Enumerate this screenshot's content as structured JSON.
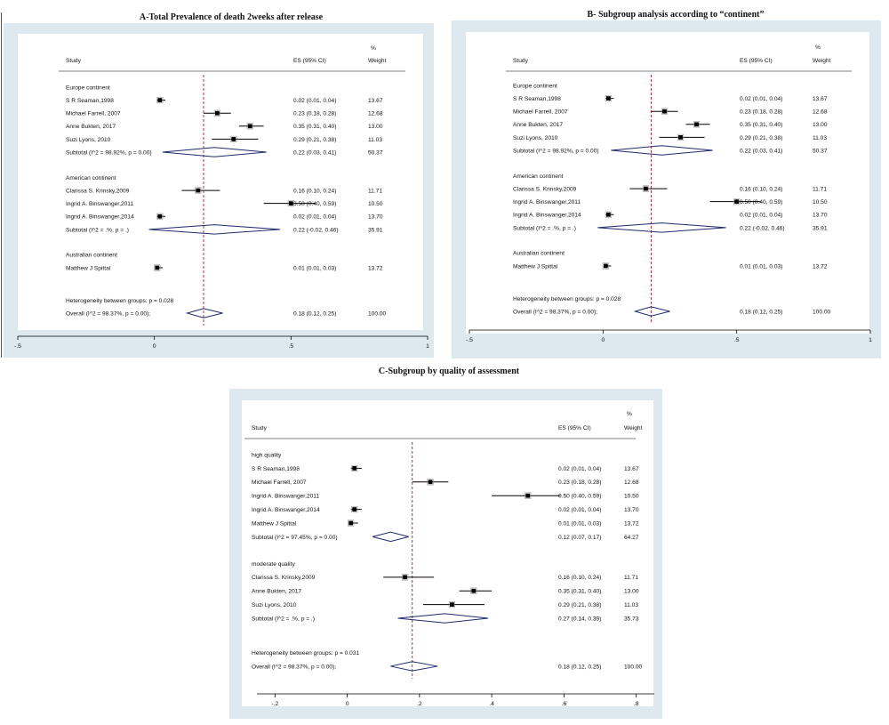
{
  "chart_data": [
    {
      "type": "forest",
      "title": "A-Total Prevalence of death 2weeks after release",
      "columns": {
        "study": "Study",
        "es": "ES (95% CI)",
        "weight_pct": "%",
        "weight": "Weight"
      },
      "xlim": [
        -0.5,
        1
      ],
      "xticks": [
        "-.5",
        "0",
        ".5",
        "1"
      ],
      "tick_values": [
        -0.5,
        0,
        0.5,
        1
      ],
      "overall_line": 0.18,
      "groups": [
        {
          "name": "Europe continent",
          "studies": [
            {
              "label": "S R Seaman,1998",
              "es": 0.02,
              "lo": 0.01,
              "hi": 0.04,
              "ci": "0.02 (0.01, 0.04)",
              "weight": "13.67"
            },
            {
              "label": "Michael Farrell, 2007",
              "es": 0.23,
              "lo": 0.18,
              "hi": 0.28,
              "ci": "0.23 (0.18, 0.28)",
              "weight": "12.68"
            },
            {
              "label": "Anne Bukten, 2017",
              "es": 0.35,
              "lo": 0.31,
              "hi": 0.4,
              "ci": "0.35 (0.31, 0.40)",
              "weight": "13.00"
            },
            {
              "label": "Suzi Lyons, 2010",
              "es": 0.29,
              "lo": 0.21,
              "hi": 0.38,
              "ci": "0.29 (0.21, 0.38)",
              "weight": "11.03"
            }
          ],
          "subtotal": {
            "label": "Subtotal  (I^2 = 98.92%, p = 0.00)",
            "es": 0.22,
            "lo": 0.03,
            "hi": 0.41,
            "ci": "0.22 (0.03, 0.41)",
            "weight": "50.37"
          }
        },
        {
          "name": "American continent",
          "studies": [
            {
              "label": "Clarissa S. Krinsky,2009",
              "es": 0.16,
              "lo": 0.1,
              "hi": 0.24,
              "ci": "0.16 (0.10, 0.24)",
              "weight": "11.71"
            },
            {
              "label": "Ingrid A. Binswanger,2011",
              "es": 0.5,
              "lo": 0.4,
              "hi": 0.59,
              "ci": "0.50 (0.40, 0.59)",
              "weight": "10.50"
            },
            {
              "label": "Ingrid A. Binswanger,2014",
              "es": 0.02,
              "lo": 0.01,
              "hi": 0.04,
              "ci": "0.02 (0.01, 0.04)",
              "weight": "13.70"
            }
          ],
          "subtotal": {
            "label": "Subtotal  (I^2 = .%, p = .)",
            "es": 0.22,
            "lo": -0.02,
            "hi": 0.46,
            "ci": "0.22 (-0.02, 0.46)",
            "weight": "35.91"
          }
        },
        {
          "name": "Australian continent",
          "studies": [
            {
              "label": "Matthew J Spittal",
              "es": 0.01,
              "lo": 0.01,
              "hi": 0.03,
              "ci": "0.01 (0.01, 0.03)",
              "weight": "13.72"
            }
          ],
          "subtotal": null
        }
      ],
      "heterogeneity": "Heterogeneity between groups: p = 0.028",
      "overall": {
        "label": "Overall  (I^2 = 98.37%, p = 0.00);",
        "es": 0.18,
        "lo": 0.12,
        "hi": 0.25,
        "ci": "0.18 (0.12, 0.25)",
        "weight": "100.00"
      }
    },
    {
      "type": "forest",
      "title": "B- Subgroup analysis according to “continent”",
      "columns": {
        "study": "Study",
        "es": "ES (95% CI)",
        "weight_pct": "%",
        "weight": "Weight"
      },
      "xlim": [
        -0.5,
        1
      ],
      "xticks": [
        "-.5",
        "0",
        ".5",
        "1"
      ],
      "tick_values": [
        -0.5,
        0,
        0.5,
        1
      ],
      "overall_line": 0.18,
      "groups": [
        {
          "name": "Europe continent",
          "studies": [
            {
              "label": "S R Seaman,1998",
              "es": 0.02,
              "lo": 0.01,
              "hi": 0.04,
              "ci": "0.02 (0.01, 0.04)",
              "weight": "13.67"
            },
            {
              "label": "Michael Farrell, 2007",
              "es": 0.23,
              "lo": 0.18,
              "hi": 0.28,
              "ci": "0.23 (0.18, 0.28)",
              "weight": "12.68"
            },
            {
              "label": "Anne Bukten, 2017",
              "es": 0.35,
              "lo": 0.31,
              "hi": 0.4,
              "ci": "0.35 (0.31, 0.40)",
              "weight": "13.00"
            },
            {
              "label": "Suzi Lyons, 2010",
              "es": 0.29,
              "lo": 0.21,
              "hi": 0.38,
              "ci": "0.29 (0.21, 0.38)",
              "weight": "11.03"
            }
          ],
          "subtotal": {
            "label": "Subtotal  (I^2 = 98.92%, p = 0.00)",
            "es": 0.22,
            "lo": 0.03,
            "hi": 0.41,
            "ci": "0.22 (0.03, 0.41)",
            "weight": "50.37"
          }
        },
        {
          "name": "American continent",
          "studies": [
            {
              "label": "Clarissa S. Krinsky,2009",
              "es": 0.16,
              "lo": 0.1,
              "hi": 0.24,
              "ci": "0.16 (0.10, 0.24)",
              "weight": "11.71"
            },
            {
              "label": "Ingrid A. Binswanger,2011",
              "es": 0.5,
              "lo": 0.4,
              "hi": 0.59,
              "ci": "0.50 (0.40, 0.59)",
              "weight": "10.50"
            },
            {
              "label": "Ingrid A. Binswanger,2014",
              "es": 0.02,
              "lo": 0.01,
              "hi": 0.04,
              "ci": "0.02 (0.01, 0.04)",
              "weight": "13.70"
            }
          ],
          "subtotal": {
            "label": "Subtotal  (I^2 = .%, p = .)",
            "es": 0.22,
            "lo": -0.02,
            "hi": 0.46,
            "ci": "0.22 (-0.02, 0.46)",
            "weight": "35.91"
          }
        },
        {
          "name": "Australian continent",
          "studies": [
            {
              "label": "Matthew J Spittal",
              "es": 0.01,
              "lo": 0.01,
              "hi": 0.03,
              "ci": "0.01 (0.01, 0.03)",
              "weight": "13.72"
            }
          ],
          "subtotal": null
        }
      ],
      "heterogeneity": "Heterogeneity between groups: p = 0.028",
      "overall": {
        "label": "Overall  (I^2 = 98.37%, p = 0.00);",
        "es": 0.18,
        "lo": 0.12,
        "hi": 0.25,
        "ci": "0.18 (0.12, 0.25)",
        "weight": "100.00"
      }
    },
    {
      "type": "forest",
      "title": "C-Subgroup by quality of assessment",
      "columns": {
        "study": "Study",
        "es": "ES (95% CI)",
        "weight_pct": "%",
        "weight": "Weight"
      },
      "xlim": [
        -0.25,
        0.85
      ],
      "xticks": [
        "-.2",
        "0",
        ".2",
        ".4",
        ".6",
        ".8"
      ],
      "tick_values": [
        -0.2,
        0,
        0.2,
        0.4,
        0.6,
        0.8
      ],
      "overall_line": 0.18,
      "groups": [
        {
          "name": "high quality",
          "studies": [
            {
              "label": "S R Seaman,1998",
              "es": 0.02,
              "lo": 0.01,
              "hi": 0.04,
              "ci": "0.02 (0.01, 0.04)",
              "weight": "13.67"
            },
            {
              "label": "Michael Farrell, 2007",
              "es": 0.23,
              "lo": 0.18,
              "hi": 0.28,
              "ci": "0.23 (0.18, 0.28)",
              "weight": "12.68"
            },
            {
              "label": "Ingrid A. Binswanger,2011",
              "es": 0.5,
              "lo": 0.4,
              "hi": 0.59,
              "ci": "0.50 (0.40, 0.59)",
              "weight": "10.50"
            },
            {
              "label": "Ingrid A. Binswanger,2014",
              "es": 0.02,
              "lo": 0.01,
              "hi": 0.04,
              "ci": "0.02 (0.01, 0.04)",
              "weight": "13.70"
            },
            {
              "label": "Matthew J Spittal",
              "es": 0.01,
              "lo": 0.01,
              "hi": 0.03,
              "ci": "0.01 (0.01, 0.03)",
              "weight": "13.72"
            }
          ],
          "subtotal": {
            "label": "Subtotal  (I^2 = 97.45%, p = 0.00)",
            "es": 0.12,
            "lo": 0.07,
            "hi": 0.17,
            "ci": "0.12 (0.07, 0.17)",
            "weight": "64.27"
          }
        },
        {
          "name": "moderate quality",
          "studies": [
            {
              "label": "Clarissa S. Krinsky,2009",
              "es": 0.16,
              "lo": 0.1,
              "hi": 0.24,
              "ci": "0.16 (0.10, 0.24)",
              "weight": "11.71"
            },
            {
              "label": "Anne Bukten, 2017",
              "es": 0.35,
              "lo": 0.31,
              "hi": 0.4,
              "ci": "0.35 (0.31, 0.40)",
              "weight": "13.00"
            },
            {
              "label": "Suzi Lyons, 2010",
              "es": 0.29,
              "lo": 0.21,
              "hi": 0.38,
              "ci": "0.29 (0.21, 0.38)",
              "weight": "11.03"
            }
          ],
          "subtotal": {
            "label": "Subtotal  (I^2 = .%, p = .)",
            "es": 0.27,
            "lo": 0.14,
            "hi": 0.39,
            "ci": "0.27 (0.14, 0.39)",
            "weight": "35.73"
          }
        }
      ],
      "heterogeneity": "Heterogeneity between groups: p = 0.031",
      "overall": {
        "label": "Overall  (I^2 = 98.37%, p = 0.00);",
        "es": 0.18,
        "lo": 0.12,
        "hi": 0.25,
        "ci": "0.18 (0.12, 0.25)",
        "weight": "100.00"
      }
    }
  ],
  "colors": {
    "panel_bg": "#dde9ee",
    "plot_bg": "#ffffff",
    "diamond": "#1f2a6b",
    "marker": "#000000",
    "overall_line": "#a4203a",
    "axis": "#000000"
  }
}
